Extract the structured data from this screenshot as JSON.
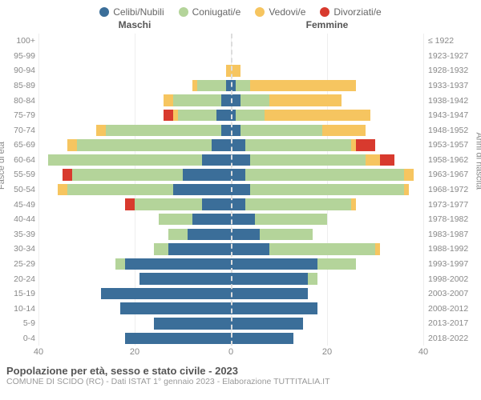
{
  "legend": [
    {
      "label": "Celibi/Nubili",
      "color": "#3b6e99"
    },
    {
      "label": "Coniugati/e",
      "color": "#b4d49a"
    },
    {
      "label": "Vedovi/e",
      "color": "#f6c560"
    },
    {
      "label": "Divorziati/e",
      "color": "#d83a2e"
    }
  ],
  "categories": [
    "celibi",
    "coniugati",
    "vedovi",
    "divorziati"
  ],
  "category_colors": {
    "celibi": "#3b6e99",
    "coniugati": "#b4d49a",
    "vedovi": "#f6c560",
    "divorziati": "#d83a2e"
  },
  "header_left": "Maschi",
  "header_right": "Femmine",
  "y_title_left": "Fasce di età",
  "y_title_right": "Anni di nascita",
  "x_max": 40,
  "x_ticks": [
    40,
    20,
    0,
    20,
    40
  ],
  "rows": [
    {
      "age": "100+",
      "birth": "≤ 1922",
      "m": {
        "celibi": 0,
        "coniugati": 0,
        "vedovi": 0,
        "divorziati": 0
      },
      "f": {
        "celibi": 0,
        "coniugati": 0,
        "vedovi": 0,
        "divorziati": 0
      }
    },
    {
      "age": "95-99",
      "birth": "1923-1927",
      "m": {
        "celibi": 0,
        "coniugati": 0,
        "vedovi": 0,
        "divorziati": 0
      },
      "f": {
        "celibi": 0,
        "coniugati": 0,
        "vedovi": 0,
        "divorziati": 0
      }
    },
    {
      "age": "90-94",
      "birth": "1928-1932",
      "m": {
        "celibi": 0,
        "coniugati": 0,
        "vedovi": 1,
        "divorziati": 0
      },
      "f": {
        "celibi": 0,
        "coniugati": 0,
        "vedovi": 2,
        "divorziati": 0
      }
    },
    {
      "age": "85-89",
      "birth": "1933-1937",
      "m": {
        "celibi": 1,
        "coniugati": 6,
        "vedovi": 1,
        "divorziati": 0
      },
      "f": {
        "celibi": 1,
        "coniugati": 3,
        "vedovi": 22,
        "divorziati": 0
      }
    },
    {
      "age": "80-84",
      "birth": "1938-1942",
      "m": {
        "celibi": 2,
        "coniugati": 10,
        "vedovi": 2,
        "divorziati": 0
      },
      "f": {
        "celibi": 2,
        "coniugati": 6,
        "vedovi": 15,
        "divorziati": 0
      }
    },
    {
      "age": "75-79",
      "birth": "1943-1947",
      "m": {
        "celibi": 3,
        "coniugati": 8,
        "vedovi": 1,
        "divorziati": 2
      },
      "f": {
        "celibi": 1,
        "coniugati": 6,
        "vedovi": 22,
        "divorziati": 0
      }
    },
    {
      "age": "70-74",
      "birth": "1948-1952",
      "m": {
        "celibi": 2,
        "coniugati": 24,
        "vedovi": 2,
        "divorziati": 0
      },
      "f": {
        "celibi": 2,
        "coniugati": 17,
        "vedovi": 9,
        "divorziati": 0
      }
    },
    {
      "age": "65-69",
      "birth": "1953-1957",
      "m": {
        "celibi": 4,
        "coniugati": 28,
        "vedovi": 2,
        "divorziati": 0
      },
      "f": {
        "celibi": 3,
        "coniugati": 22,
        "vedovi": 1,
        "divorziati": 4
      }
    },
    {
      "age": "60-64",
      "birth": "1958-1962",
      "m": {
        "celibi": 6,
        "coniugati": 32,
        "vedovi": 0,
        "divorziati": 0
      },
      "f": {
        "celibi": 4,
        "coniugati": 24,
        "vedovi": 3,
        "divorziati": 3
      }
    },
    {
      "age": "55-59",
      "birth": "1963-1967",
      "m": {
        "celibi": 10,
        "coniugati": 23,
        "vedovi": 0,
        "divorziati": 2
      },
      "f": {
        "celibi": 3,
        "coniugati": 33,
        "vedovi": 2,
        "divorziati": 0
      }
    },
    {
      "age": "50-54",
      "birth": "1968-1972",
      "m": {
        "celibi": 12,
        "coniugati": 22,
        "vedovi": 2,
        "divorziati": 0
      },
      "f": {
        "celibi": 4,
        "coniugati": 32,
        "vedovi": 1,
        "divorziati": 0
      }
    },
    {
      "age": "45-49",
      "birth": "1973-1977",
      "m": {
        "celibi": 6,
        "coniugati": 14,
        "vedovi": 0,
        "divorziati": 2
      },
      "f": {
        "celibi": 3,
        "coniugati": 22,
        "vedovi": 1,
        "divorziati": 0
      }
    },
    {
      "age": "40-44",
      "birth": "1978-1982",
      "m": {
        "celibi": 8,
        "coniugati": 7,
        "vedovi": 0,
        "divorziati": 0
      },
      "f": {
        "celibi": 5,
        "coniugati": 15,
        "vedovi": 0,
        "divorziati": 0
      }
    },
    {
      "age": "35-39",
      "birth": "1983-1987",
      "m": {
        "celibi": 9,
        "coniugati": 4,
        "vedovi": 0,
        "divorziati": 0
      },
      "f": {
        "celibi": 6,
        "coniugati": 11,
        "vedovi": 0,
        "divorziati": 0
      }
    },
    {
      "age": "30-34",
      "birth": "1988-1992",
      "m": {
        "celibi": 13,
        "coniugati": 3,
        "vedovi": 0,
        "divorziati": 0
      },
      "f": {
        "celibi": 8,
        "coniugati": 22,
        "vedovi": 1,
        "divorziati": 0
      }
    },
    {
      "age": "25-29",
      "birth": "1993-1997",
      "m": {
        "celibi": 22,
        "coniugati": 2,
        "vedovi": 0,
        "divorziati": 0
      },
      "f": {
        "celibi": 18,
        "coniugati": 8,
        "vedovi": 0,
        "divorziati": 0
      }
    },
    {
      "age": "20-24",
      "birth": "1998-2002",
      "m": {
        "celibi": 19,
        "coniugati": 0,
        "vedovi": 0,
        "divorziati": 0
      },
      "f": {
        "celibi": 16,
        "coniugati": 2,
        "vedovi": 0,
        "divorziati": 0
      }
    },
    {
      "age": "15-19",
      "birth": "2003-2007",
      "m": {
        "celibi": 27,
        "coniugati": 0,
        "vedovi": 0,
        "divorziati": 0
      },
      "f": {
        "celibi": 16,
        "coniugati": 0,
        "vedovi": 0,
        "divorziati": 0
      }
    },
    {
      "age": "10-14",
      "birth": "2008-2012",
      "m": {
        "celibi": 23,
        "coniugati": 0,
        "vedovi": 0,
        "divorziati": 0
      },
      "f": {
        "celibi": 18,
        "coniugati": 0,
        "vedovi": 0,
        "divorziati": 0
      }
    },
    {
      "age": "5-9",
      "birth": "2013-2017",
      "m": {
        "celibi": 16,
        "coniugati": 0,
        "vedovi": 0,
        "divorziati": 0
      },
      "f": {
        "celibi": 15,
        "coniugati": 0,
        "vedovi": 0,
        "divorziati": 0
      }
    },
    {
      "age": "0-4",
      "birth": "2018-2022",
      "m": {
        "celibi": 22,
        "coniugati": 0,
        "vedovi": 0,
        "divorziati": 0
      },
      "f": {
        "celibi": 13,
        "coniugati": 0,
        "vedovi": 0,
        "divorziati": 0
      }
    }
  ],
  "title": "Popolazione per età, sesso e stato civile - 2023",
  "subtitle": "COMUNE DI SCIDO (RC) - Dati ISTAT 1° gennaio 2023 - Elaborazione TUTTITALIA.IT",
  "grid_color": "#eeeeee",
  "background_color": "#ffffff",
  "axis_font_size": 10.5,
  "title_font_size": 13
}
